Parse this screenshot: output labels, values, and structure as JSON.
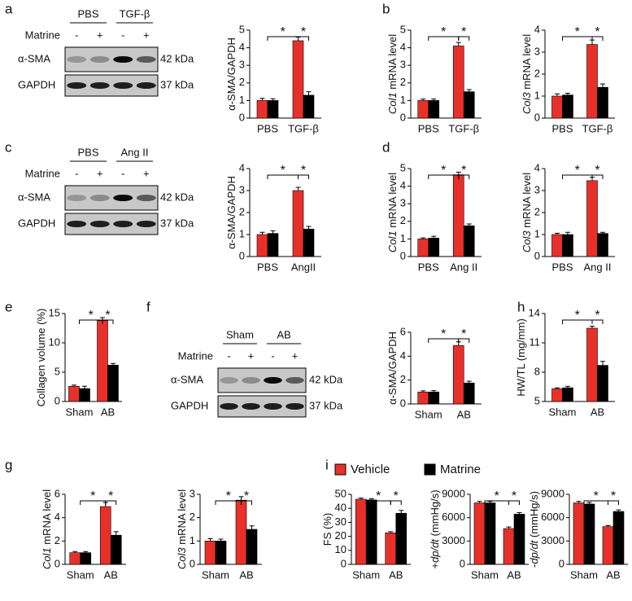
{
  "panel_labels": [
    "a",
    "b",
    "c",
    "d",
    "e",
    "f",
    "h",
    "g",
    "i"
  ],
  "legend": {
    "series": [
      {
        "name": "Vehicle",
        "color": "#e8302a"
      },
      {
        "name": "Matrine",
        "color": "#000000"
      }
    ]
  },
  "blots": [
    {
      "groups": [
        "PBS",
        "TGF-β"
      ],
      "row_label": "Matrine",
      "signs": [
        "-",
        "+",
        "-",
        "+"
      ],
      "rows": [
        {
          "name": "α-SMA",
          "size": "42 kDa"
        },
        {
          "name": "GAPDH",
          "size": "37 kDa"
        }
      ]
    },
    {
      "groups": [
        "PBS",
        "Ang II"
      ],
      "row_label": "Matrine",
      "signs": [
        "-",
        "+",
        "-",
        "+"
      ],
      "rows": [
        {
          "name": "α-SMA",
          "size": "42 kDa"
        },
        {
          "name": "GAPDH",
          "size": "37 kDa"
        }
      ]
    },
    {
      "groups": [
        "Sham",
        "AB"
      ],
      "row_label": "Matrine",
      "signs": [
        "-",
        "+",
        "-",
        "+"
      ],
      "rows": [
        {
          "name": "α-SMA",
          "size": "42 kDa"
        },
        {
          "name": "GAPDH",
          "size": "37 kDa"
        }
      ]
    }
  ],
  "chart_data": [
    {
      "type": "bar",
      "ylabel": [
        {
          "text": "α-SMA/GAPDH"
        }
      ],
      "categories": [
        "PBS",
        "TGF-β"
      ],
      "series": [
        {
          "color": "#e8302a",
          "values": [
            1,
            4.4
          ],
          "errors": [
            0.12,
            0.2
          ]
        },
        {
          "color": "#000000",
          "values": [
            1,
            1.3
          ],
          "errors": [
            0.1,
            0.2
          ]
        }
      ],
      "ylim": [
        0,
        5
      ],
      "yticks": [
        0,
        1,
        2,
        3,
        4,
        5
      ],
      "brackets": [
        {
          "label": "*"
        },
        {
          "label": "*"
        }
      ]
    },
    {
      "type": "bar",
      "ylabel": [
        {
          "text": "Col1",
          "italic": true
        },
        {
          "text": " mRNA level"
        }
      ],
      "categories": [
        "PBS",
        "TGF-β"
      ],
      "series": [
        {
          "color": "#e8302a",
          "values": [
            1,
            4.1
          ],
          "errors": [
            0.08,
            0.2
          ]
        },
        {
          "color": "#000000",
          "values": [
            1,
            1.5
          ],
          "errors": [
            0.08,
            0.12
          ]
        }
      ],
      "ylim": [
        0,
        5
      ],
      "yticks": [
        0,
        1,
        2,
        3,
        4,
        5
      ],
      "brackets": [
        {
          "label": "*"
        },
        {
          "label": "*"
        }
      ]
    },
    {
      "type": "bar",
      "ylabel": [
        {
          "text": "Col3",
          "italic": true
        },
        {
          "text": " mRNA level"
        }
      ],
      "categories": [
        "PBS",
        "TGF-β"
      ],
      "series": [
        {
          "color": "#e8302a",
          "values": [
            1,
            3.35
          ],
          "errors": [
            0.1,
            0.2
          ]
        },
        {
          "color": "#000000",
          "values": [
            1.05,
            1.4
          ],
          "errors": [
            0.08,
            0.15
          ]
        }
      ],
      "ylim": [
        0,
        4
      ],
      "yticks": [
        0,
        1,
        2,
        3,
        4
      ],
      "brackets": [
        {
          "label": "*"
        },
        {
          "label": "*"
        }
      ]
    },
    {
      "type": "bar",
      "ylabel": [
        {
          "text": "α-SMA/GAPDH"
        }
      ],
      "categories": [
        "PBS",
        "AngII"
      ],
      "series": [
        {
          "color": "#e8302a",
          "values": [
            1,
            3
          ],
          "errors": [
            0.1,
            0.15
          ]
        },
        {
          "color": "#000000",
          "values": [
            1.05,
            1.25
          ],
          "errors": [
            0.12,
            0.12
          ]
        }
      ],
      "ylim": [
        0,
        4
      ],
      "yticks": [
        0,
        1,
        2,
        3,
        4
      ],
      "brackets": [
        {
          "label": "*"
        },
        {
          "label": "*"
        }
      ]
    },
    {
      "type": "bar",
      "ylabel": [
        {
          "text": "Col1",
          "italic": true
        },
        {
          "text": " mRNA level"
        }
      ],
      "categories": [
        "PBS",
        "Ang II"
      ],
      "series": [
        {
          "color": "#e8302a",
          "values": [
            1,
            4.65
          ],
          "errors": [
            0.06,
            0.15
          ]
        },
        {
          "color": "#000000",
          "values": [
            1.05,
            1.75
          ],
          "errors": [
            0.1,
            0.1
          ]
        }
      ],
      "ylim": [
        0,
        5
      ],
      "yticks": [
        0,
        1,
        2,
        3,
        4,
        5
      ],
      "brackets": [
        {
          "label": "*"
        },
        {
          "label": "*"
        }
      ]
    },
    {
      "type": "bar",
      "ylabel": [
        {
          "text": "Col3",
          "italic": true
        },
        {
          "text": " mRNA level"
        }
      ],
      "categories": [
        "PBS",
        "Ang II"
      ],
      "series": [
        {
          "color": "#e8302a",
          "values": [
            1,
            3.45
          ],
          "errors": [
            0.06,
            0.15
          ]
        },
        {
          "color": "#000000",
          "values": [
            1,
            1.05
          ],
          "errors": [
            0.1,
            0.05
          ]
        }
      ],
      "ylim": [
        0,
        4
      ],
      "yticks": [
        0,
        1,
        2,
        3,
        4
      ],
      "brackets": [
        {
          "label": "*"
        },
        {
          "label": "*"
        }
      ]
    },
    {
      "type": "bar",
      "ylabel": [
        {
          "text": "Collagen volume (%)"
        }
      ],
      "categories": [
        "Sham",
        "AB"
      ],
      "series": [
        {
          "color": "#e8302a",
          "values": [
            2.6,
            13.8
          ],
          "errors": [
            0.2,
            0.5
          ]
        },
        {
          "color": "#000000",
          "values": [
            2.2,
            6.2
          ],
          "errors": [
            0.4,
            0.3
          ]
        }
      ],
      "ylim": [
        0,
        15
      ],
      "yticks": [
        0,
        5,
        10,
        15
      ],
      "brackets": [
        {
          "label": "*"
        },
        {
          "label": "*"
        }
      ]
    },
    {
      "type": "bar",
      "ylabel": [
        {
          "text": "α-SMA/GAPDH"
        }
      ],
      "categories": [
        "Sham",
        "AB"
      ],
      "series": [
        {
          "color": "#e8302a",
          "values": [
            1,
            4.9
          ],
          "errors": [
            0.1,
            0.3
          ]
        },
        {
          "color": "#000000",
          "values": [
            1,
            1.75
          ],
          "errors": [
            0.12,
            0.15
          ]
        }
      ],
      "ylim": [
        0,
        6
      ],
      "yticks": [
        0,
        2,
        4,
        6
      ],
      "brackets": [
        {
          "label": "*"
        },
        {
          "label": "*"
        }
      ]
    },
    {
      "type": "bar",
      "ylabel": [
        {
          "text": "HW/TL (mg/mm)"
        }
      ],
      "categories": [
        "Sham",
        "AB"
      ],
      "series": [
        {
          "color": "#e8302a",
          "values": [
            6.3,
            12.5
          ],
          "errors": [
            0.1,
            0.2
          ]
        },
        {
          "color": "#000000",
          "values": [
            6.4,
            8.7
          ],
          "errors": [
            0.15,
            0.4
          ]
        }
      ],
      "ylim": [
        5,
        14
      ],
      "yticks": [
        5,
        8,
        11,
        14
      ],
      "brackets": [
        {
          "label": "*"
        },
        {
          "label": "*"
        }
      ]
    },
    {
      "type": "bar",
      "ylabel": [
        {
          "text": "Col1",
          "italic": true
        },
        {
          "text": " mRNA level"
        }
      ],
      "categories": [
        "Sham",
        "AB"
      ],
      "series": [
        {
          "color": "#e8302a",
          "values": [
            1,
            4.95
          ],
          "errors": [
            0.1,
            0.35
          ]
        },
        {
          "color": "#000000",
          "values": [
            1,
            2.5
          ],
          "errors": [
            0.1,
            0.3
          ]
        }
      ],
      "ylim": [
        0,
        6
      ],
      "yticks": [
        0,
        2,
        4,
        6
      ],
      "brackets": [
        {
          "label": "*"
        },
        {
          "label": "*"
        }
      ]
    },
    {
      "type": "bar",
      "ylabel": [
        {
          "text": "Col3",
          "italic": true
        },
        {
          "text": " mRNA level"
        }
      ],
      "categories": [
        "Sham",
        "AB"
      ],
      "series": [
        {
          "color": "#e8302a",
          "values": [
            1,
            2.75
          ],
          "errors": [
            0.1,
            0.15
          ]
        },
        {
          "color": "#000000",
          "values": [
            1,
            1.5
          ],
          "errors": [
            0.08,
            0.15
          ]
        }
      ],
      "ylim": [
        0,
        3
      ],
      "yticks": [
        0,
        1,
        2,
        3
      ],
      "brackets": [
        {
          "label": "*"
        },
        {
          "label": "*"
        }
      ]
    },
    {
      "type": "bar",
      "ylabel": [
        {
          "text": "FS (%)"
        }
      ],
      "categories": [
        "Sham",
        "AB"
      ],
      "series": [
        {
          "color": "#e8302a",
          "values": [
            46.5,
            22.5
          ],
          "errors": [
            0.8,
            0.8
          ]
        },
        {
          "color": "#000000",
          "values": [
            46,
            36.5
          ],
          "errors": [
            0.8,
            2
          ]
        }
      ],
      "ylim": [
        0,
        50
      ],
      "yticks": [
        0,
        10,
        20,
        30,
        40,
        50
      ],
      "brackets": [
        {
          "label": "*"
        },
        {
          "label": "*"
        }
      ]
    },
    {
      "type": "bar",
      "ylabel": [
        {
          "text": "+"
        },
        {
          "text": "dp/dt",
          "italic": true
        },
        {
          "text": " (mmHg/s)"
        }
      ],
      "categories": [
        "Sham",
        "AB"
      ],
      "series": [
        {
          "color": "#e8302a",
          "values": [
            7900,
            4600
          ],
          "errors": [
            200,
            200
          ]
        },
        {
          "color": "#000000",
          "values": [
            7900,
            6450
          ],
          "errors": [
            200,
            200
          ]
        }
      ],
      "ylim": [
        0,
        9000
      ],
      "yticks": [
        0,
        3000,
        6000,
        9000
      ],
      "brackets": [
        {
          "label": "*"
        },
        {
          "label": "*"
        }
      ]
    },
    {
      "type": "bar",
      "ylabel": [
        {
          "text": "-"
        },
        {
          "text": "dp/dt",
          "italic": true
        },
        {
          "text": " (mmHg/s)"
        }
      ],
      "categories": [
        "Sham",
        "AB"
      ],
      "series": [
        {
          "color": "#e8302a",
          "values": [
            7900,
            4850
          ],
          "errors": [
            200,
            150
          ]
        },
        {
          "color": "#000000",
          "values": [
            7750,
            6800
          ],
          "errors": [
            200,
            200
          ]
        }
      ],
      "ylim": [
        0,
        9000
      ],
      "yticks": [
        0,
        3000,
        6000,
        9000
      ],
      "brackets": [
        {
          "label": "*"
        },
        {
          "label": "*"
        }
      ]
    }
  ]
}
